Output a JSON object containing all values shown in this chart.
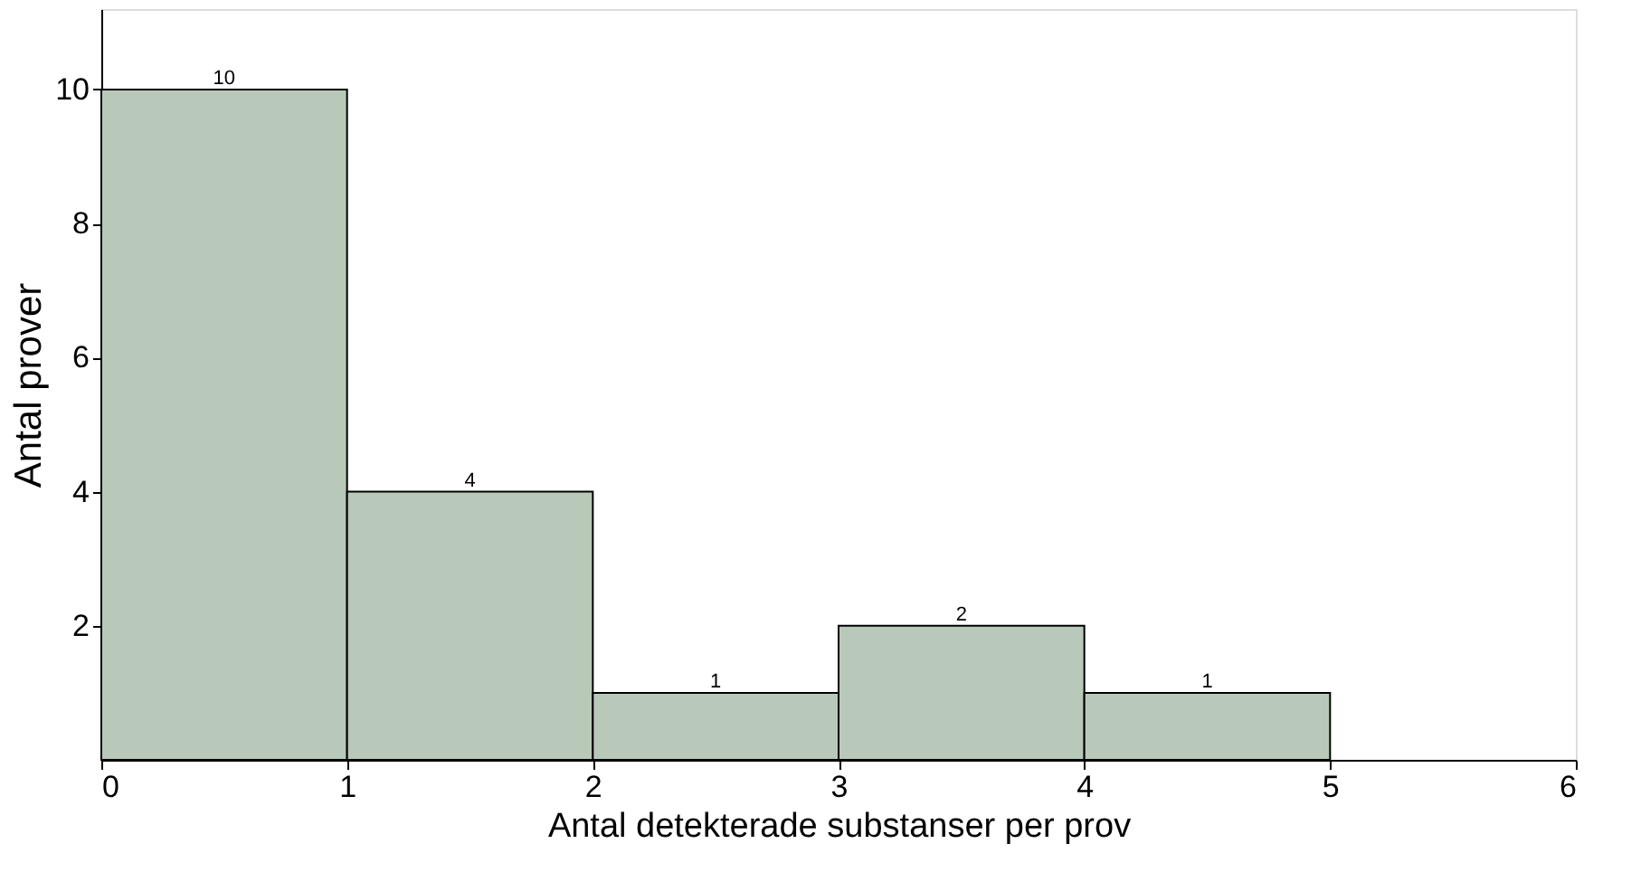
{
  "chart_data": {
    "type": "histogram",
    "bins": [
      0,
      1,
      2,
      3,
      4,
      5
    ],
    "values": [
      10,
      4,
      1,
      2,
      1
    ],
    "color": "#b9c9b9",
    "xlabel": "Antal detekterade substanser per prov",
    "ylabel": "Antal prover",
    "xlim": [
      0,
      6
    ],
    "xticks": [
      0,
      1,
      2,
      3,
      4,
      5,
      6
    ],
    "ylim": [
      0,
      11.2
    ],
    "yticks": [
      2,
      4,
      6,
      8,
      10
    ],
    "data_labels": true,
    "grid": false
  }
}
